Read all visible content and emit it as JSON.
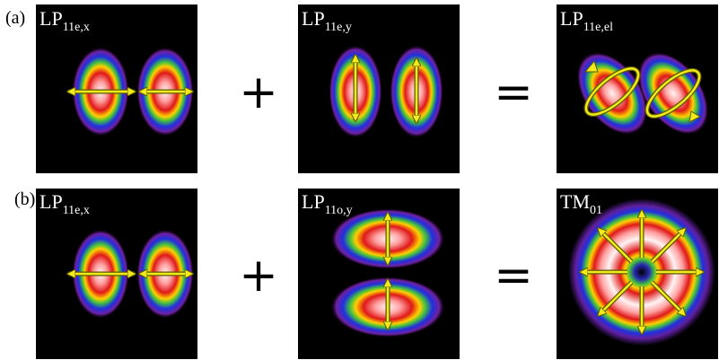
{
  "rows": [
    {
      "tag": "(a)",
      "operators": [
        "+",
        "="
      ],
      "panels": [
        {
          "label": "LP",
          "subscript": "11e,x"
        },
        {
          "label": "LP",
          "subscript": "11e,y"
        },
        {
          "label": "LP",
          "subscript": "11e,el"
        }
      ]
    },
    {
      "tag": "(b)",
      "operators": [
        "+",
        "="
      ],
      "panels": [
        {
          "label": "LP",
          "subscript": "11e,x"
        },
        {
          "label": "LP",
          "subscript": "11o,y"
        },
        {
          "label": "TM",
          "subscript": "01"
        }
      ]
    }
  ]
}
